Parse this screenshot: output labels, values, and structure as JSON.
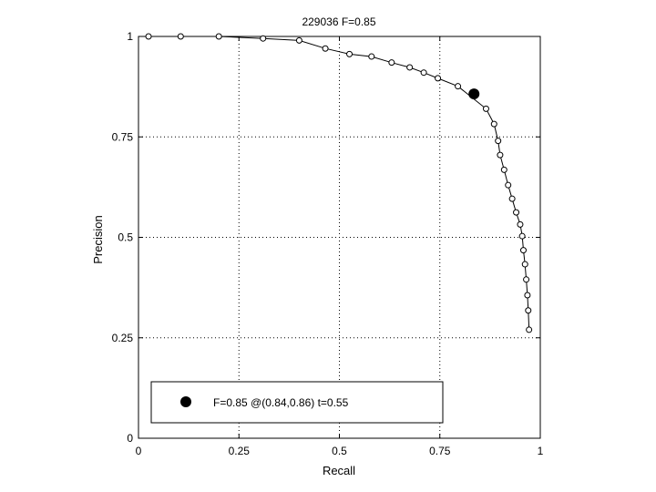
{
  "chart_data": {
    "type": "line",
    "title": "229036 F=0.85",
    "xlabel": "Recall",
    "ylabel": "Precision",
    "xlim": [
      0,
      1
    ],
    "ylim": [
      0,
      1
    ],
    "grid": true,
    "x_ticks": [
      "0",
      "0.25",
      "0.5",
      "0.75",
      "1"
    ],
    "y_ticks": [
      "0",
      "0.25",
      "0.5",
      "0.75",
      "1"
    ],
    "series": [
      {
        "x": [
          0.025,
          0.105,
          0.2,
          0.31,
          0.4,
          0.465,
          0.525,
          0.58,
          0.63,
          0.675,
          0.71,
          0.745,
          0.795,
          0.865,
          0.885,
          0.895,
          0.9,
          0.91,
          0.92,
          0.93,
          0.94,
          0.95,
          0.955,
          0.958,
          0.962,
          0.965,
          0.968,
          0.97,
          0.972
        ],
        "y": [
          1.0,
          1.0,
          1.0,
          0.995,
          0.99,
          0.97,
          0.956,
          0.95,
          0.935,
          0.923,
          0.91,
          0.896,
          0.876,
          0.82,
          0.782,
          0.74,
          0.705,
          0.668,
          0.63,
          0.596,
          0.562,
          0.532,
          0.503,
          0.468,
          0.433,
          0.395,
          0.356,
          0.318,
          0.27
        ]
      }
    ],
    "best_point": {
      "x": 0.835,
      "y": 0.857
    },
    "legend": {
      "position": "bottom-left",
      "label": "F=0.85 @(0.84,0.86) t=0.55"
    }
  }
}
